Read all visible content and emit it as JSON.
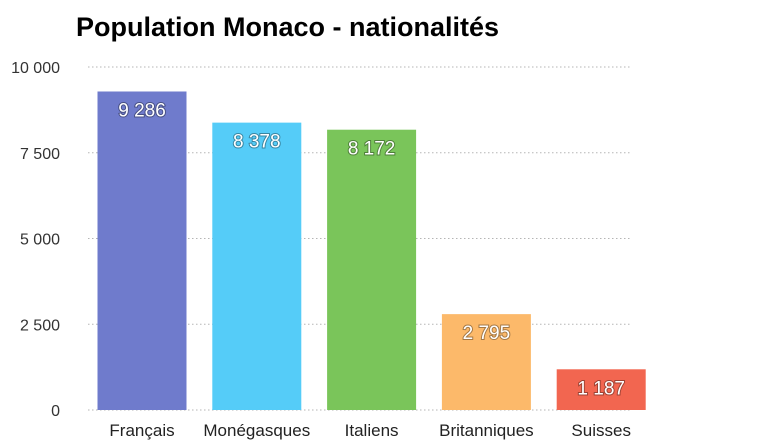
{
  "chart_data": {
    "type": "bar",
    "title": "Population Monaco - nationalités",
    "xlabel": "",
    "ylabel": "",
    "categories": [
      "Français",
      "Monégasques",
      "Italiens",
      "Britanniques",
      "Suisses"
    ],
    "values": [
      9286,
      8378,
      8172,
      2795,
      1187
    ],
    "value_labels": [
      "9 286",
      "8 378",
      "8 172",
      "2 795",
      "1 187"
    ],
    "colors": [
      "#6F7BCC",
      "#55CCF8",
      "#7AC55A",
      "#FCB96A",
      "#F26650"
    ],
    "ylim": [
      0,
      10000
    ],
    "yticks": [
      0,
      2500,
      5000,
      7500,
      10000
    ],
    "ytick_labels": [
      "0",
      "2 500",
      "5 000",
      "7 500",
      "10 000"
    ],
    "grid": true,
    "legend": "none"
  }
}
